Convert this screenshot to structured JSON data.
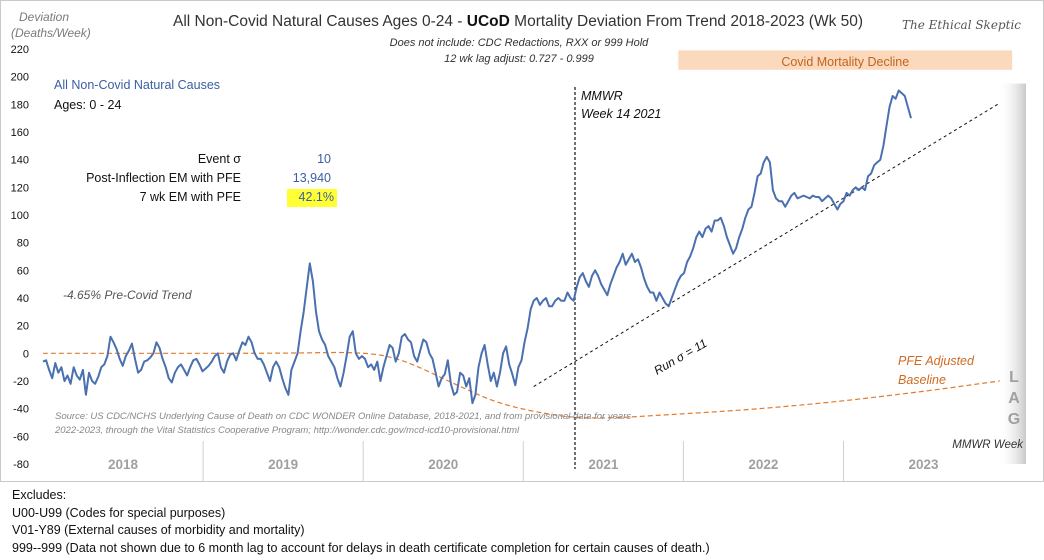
{
  "chart_data": {
    "type": "line",
    "title_pre": "All Non-Covid Natural Causes Ages 0-24 -",
    "title_bold": "UCoD",
    "title_post": "Mortality Deviation From Trend  2018-2023 (Wk 50)",
    "subtitle_1": "Does not include: CDC Redactions,  RXX or 999 Hold",
    "subtitle_2": "12 wk lag adjust: 0.727 - 0.999",
    "brand": "The Ethical Skeptic",
    "ylabel_1": "Deviation",
    "ylabel_2": "(Deaths/Week)",
    "xlabel": "MMWR Week",
    "ylim": [
      -80,
      220
    ],
    "yticks": [
      "220",
      "200",
      "180",
      "160",
      "140",
      "120",
      "100",
      "80",
      "60",
      "40",
      "20",
      "0",
      "-20",
      "-40",
      "-60",
      "-80"
    ],
    "year_labels": [
      "2018",
      "2019",
      "2020",
      "2021",
      "2022",
      "2023"
    ],
    "legend_series": "All Non-Covid Natural Causes",
    "legend_ages": "Ages: 0 - 24",
    "stats": {
      "row1_label": "Event σ",
      "row1_value": "10",
      "row2_label": "Post-Inflection EM with PFE",
      "row2_value": "13,940",
      "row3_label": "7 wk EM with PFE",
      "row3_value": "42.1%"
    },
    "annotations": {
      "pre_covid_trend": "-4.65% Pre-Covid Trend",
      "mmwr_1": "MMWR",
      "mmwr_2": "Week 14 2021",
      "run_sigma": "Run σ = 11",
      "pfe_1": "PFE Adjusted",
      "pfe_2": "Baseline",
      "covid_decline": "Covid Mortality Decline",
      "lag": [
        "L",
        "A",
        "G"
      ],
      "source_1": "Source: US CDC/NCHS Underlying Cause of Death on CDC WONDER Online Database, 2018-2021, and from provisional data for years",
      "source_2": "2022-2023, through the Vital Statistics Cooperative Program; http://wonder.cdc.gov/mcd-icd10-provisional.html"
    },
    "colors": {
      "series": "#4A70B0",
      "baseline": "#E07B30",
      "highlight": "#FFFF33",
      "band": "#FBD9BC",
      "lag": "#C8C8C8"
    },
    "series": [
      {
        "name": "All Non-Covid Natural Causes",
        "x_start": 1,
        "x_step_weeks": 1,
        "values": [
          -6,
          -5,
          -12,
          -18,
          -7,
          -14,
          -10,
          -20,
          -16,
          -22,
          -10,
          -16,
          -19,
          -12,
          -30,
          -14,
          -20,
          -22,
          -17,
          -10,
          -8,
          -2,
          12,
          8,
          3,
          -4,
          -9,
          -2,
          2,
          7,
          -4,
          -14,
          -12,
          -6,
          -5,
          -3,
          0,
          8,
          4,
          -4,
          -10,
          -18,
          -21,
          -14,
          -10,
          -8,
          -12,
          -16,
          -10,
          -5,
          -4,
          -8,
          -13,
          -11,
          -9,
          -6,
          -2,
          0,
          -10,
          -14,
          -6,
          -1,
          0,
          -5,
          2,
          8,
          6,
          12,
          8,
          0,
          -4,
          -4,
          -8,
          -14,
          -20,
          -10,
          -6,
          -10,
          -18,
          -25,
          -30,
          -12,
          -6,
          0,
          16,
          30,
          48,
          65,
          52,
          30,
          16,
          10,
          6,
          -2,
          -6,
          -10,
          -18,
          -24,
          -14,
          -2,
          12,
          16,
          0,
          -4,
          -2,
          -4,
          -10,
          -8,
          -12,
          -6,
          -20,
          -10,
          -2,
          6,
          4,
          -6,
          0,
          12,
          14,
          10,
          8,
          -2,
          -6,
          2,
          10,
          8,
          0,
          -4,
          -14,
          -24,
          -18,
          -15,
          -5,
          -22,
          -30,
          -28,
          -14,
          -16,
          -24,
          -18,
          -36,
          -30,
          -10,
          0,
          6,
          -8,
          -20,
          -14,
          -24,
          -14,
          0,
          5,
          -8,
          -15,
          -23,
          -10,
          -5,
          8,
          18,
          32,
          38,
          40,
          35,
          38,
          40,
          34,
          34,
          38,
          40,
          38,
          38,
          44,
          40,
          38,
          48,
          55,
          58,
          52,
          48,
          56,
          60,
          56,
          50,
          46,
          42,
          50,
          56,
          62,
          66,
          72,
          64,
          68,
          72,
          66,
          68,
          62,
          54,
          48,
          44,
          44,
          38,
          44,
          40,
          36,
          34,
          40,
          46,
          52,
          56,
          58,
          66,
          70,
          76,
          84,
          88,
          84,
          90,
          92,
          88,
          96,
          96,
          98,
          92,
          84,
          78,
          72,
          76,
          84,
          90,
          98,
          104,
          106,
          116,
          128,
          130,
          138,
          142,
          138,
          118,
          112,
          110,
          110,
          106,
          110,
          114,
          116,
          112,
          113,
          114,
          113,
          112,
          114,
          113,
          113,
          110,
          112,
          114,
          112,
          108,
          104,
          108,
          110,
          116,
          114,
          118,
          120,
          118,
          120,
          118,
          128,
          130,
          136,
          138,
          140,
          150,
          164,
          178,
          186,
          184,
          190,
          188,
          186,
          178,
          170
        ]
      }
    ],
    "trend_line": {
      "name": "Run",
      "x_from_week": 161,
      "y_from": -24,
      "x_to_week": 313,
      "y_to": 181
    },
    "baseline_points": [
      [
        1,
        0
      ],
      [
        40,
        0
      ],
      [
        80,
        0
      ],
      [
        105,
        1
      ],
      [
        118,
        -4
      ],
      [
        135,
        -22
      ],
      [
        150,
        -37
      ],
      [
        170,
        -46
      ],
      [
        185,
        -47
      ],
      [
        200,
        -45
      ],
      [
        230,
        -41
      ],
      [
        260,
        -35
      ],
      [
        290,
        -27
      ],
      [
        313,
        -20
      ]
    ],
    "inflection_week": 170,
    "decline_band": {
      "from_week": 200,
      "to_week": 317,
      "y_from": 205,
      "y_to": 219
    }
  },
  "footer": {
    "excludes": "Excludes:",
    "line_1": "U00-U99 (Codes for special purposes)",
    "line_2": "V01-Y89 (External causes of morbidity and mortality)",
    "line_3": "999--999 (Data not shown due to 6 month lag to account for delays in death certificate completion for certain causes of death.)"
  }
}
